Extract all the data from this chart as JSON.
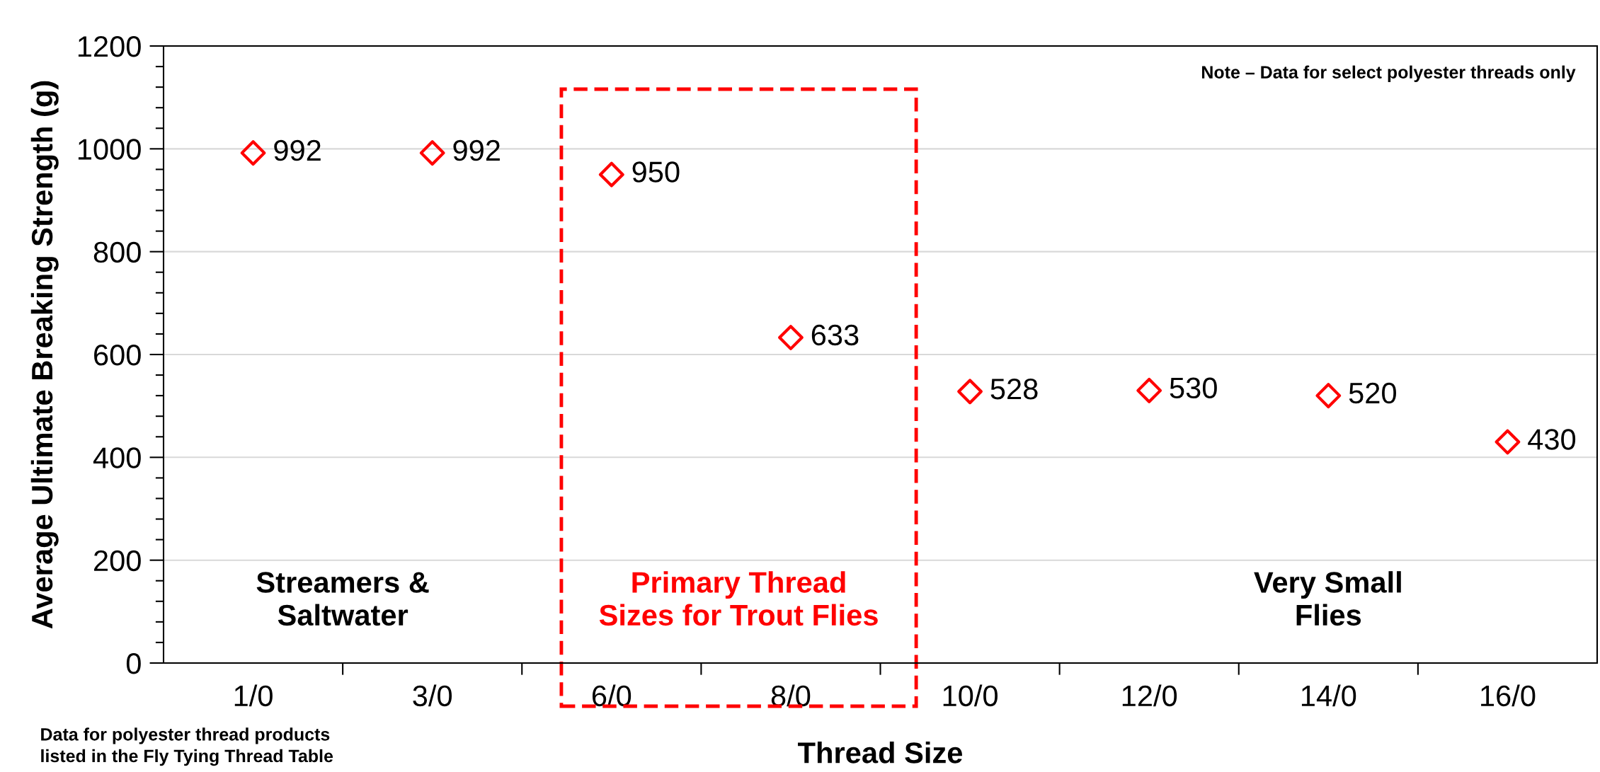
{
  "chart_data": {
    "type": "scatter",
    "xlabel": "Thread Size",
    "ylabel": "Average Ultimate Breaking Strength (g)",
    "categories": [
      "1/0",
      "3/0",
      "6/0",
      "8/0",
      "10/0",
      "12/0",
      "14/0",
      "16/0"
    ],
    "series": [
      {
        "color": "#ff0000",
        "values": [
          992,
          992,
          950,
          633,
          528,
          530,
          520,
          430
        ]
      }
    ],
    "marker": "diamond",
    "data_labels": true,
    "ylim": [
      0,
      1200
    ],
    "yticks": [
      0,
      200,
      400,
      600,
      800,
      1000,
      1200
    ],
    "grid": "y",
    "legend": false,
    "annotations": [
      "Note – Data for select polyester threads only",
      "Streamers &\nSaltwater",
      "Primary Thread\nSizes for Trout Flies",
      "Very Small\nFlies",
      "Data for polyester thread products\nlisted in the Fly Tying Thread Table"
    ]
  }
}
